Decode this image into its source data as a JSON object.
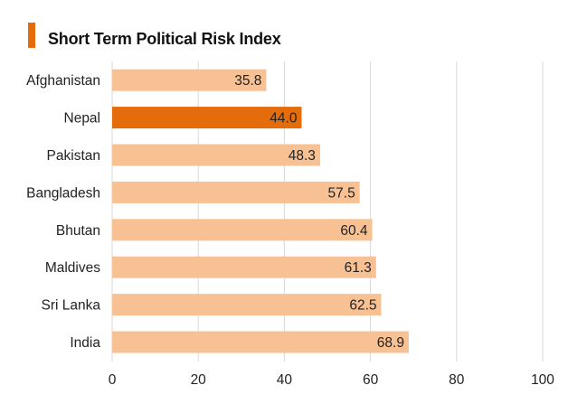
{
  "chart_data": {
    "type": "bar",
    "orientation": "horizontal",
    "title": "Short Term Political Risk Index",
    "categories": [
      "Afghanistan",
      "Nepal",
      "Pakistan",
      "Bangladesh",
      "Bhutan",
      "Maldives",
      "Sri Lanka",
      "India"
    ],
    "values": [
      35.8,
      44.0,
      48.3,
      57.5,
      60.4,
      61.3,
      62.5,
      68.9
    ],
    "value_labels": [
      "35.8",
      "44.0",
      "48.3",
      "57.5",
      "60.4",
      "61.3",
      "62.5",
      "68.9"
    ],
    "highlight_index": 1,
    "xlim": [
      0,
      100
    ],
    "xticks": [
      0,
      20,
      40,
      60,
      80,
      100
    ],
    "xtick_labels": [
      "0",
      "20",
      "40",
      "60",
      "80",
      "100"
    ],
    "grid": true,
    "colors": {
      "bar": "#F8C194",
      "highlight": "#E46C0A",
      "title_marker": "#E46C0A",
      "grid": "#D9D9D9"
    }
  }
}
